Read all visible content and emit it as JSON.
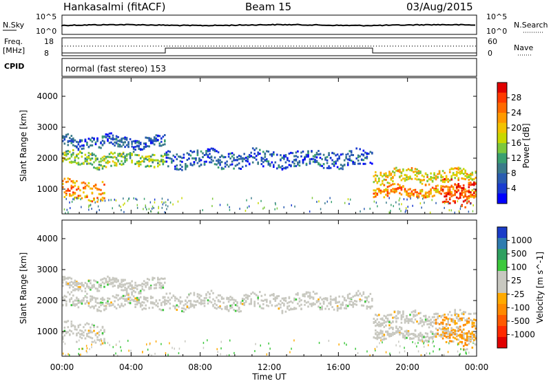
{
  "header": {
    "station": "Hankasalmi (fitACF)",
    "beam": "Beam 15",
    "date": "03/Aug/2015"
  },
  "noise_panel": {
    "left_label": "N.Sky",
    "right_label": "N.Search",
    "left_ticks": [
      "10^5",
      "10^0"
    ],
    "right_ticks": [
      "10^5",
      "10^0"
    ]
  },
  "freq_panel": {
    "left_label_1": "Freq.",
    "left_label_2": "[MHz]",
    "left_ticks": [
      "18",
      "8"
    ],
    "right_label": "Nave",
    "right_ticks": [
      "60",
      "0"
    ]
  },
  "cpid_panel": {
    "label": "CPID",
    "text": "normal (fast stereo) 153"
  },
  "power_colorbar": {
    "label": "Power [dB]",
    "ticks": [
      "28",
      "24",
      "20",
      "16",
      "12",
      "8",
      "4"
    ],
    "colors": [
      "#e00000",
      "#ff3a00",
      "#ff6a00",
      "#ff9a00",
      "#f2c300",
      "#c8d800",
      "#7cc83c",
      "#3aa070",
      "#3a7a8a",
      "#2a5cb0",
      "#1a3cd0",
      "#0000ff"
    ]
  },
  "velocity_colorbar": {
    "label": "Velocity [m s^-1]",
    "ticks": [
      "1000",
      "500",
      "100",
      "25",
      "-25",
      "-100",
      "-500",
      "-1000"
    ],
    "colors": [
      "#1a3cc8",
      "#2e7cb0",
      "#2ea060",
      "#3cc83c",
      "#c8c8c0",
      "#c8c8c0",
      "#ffaa00",
      "#ff8a00",
      "#ff5a00",
      "#ff2a00",
      "#e00000"
    ]
  },
  "chart_data": [
    {
      "type": "heatmap",
      "title": "Power",
      "xlabel": "Time UT",
      "ylabel": "Slant Range [km]",
      "x_ticks": [
        "00:00",
        "04:00",
        "08:00",
        "12:00",
        "16:00",
        "20:00",
        "00:00"
      ],
      "y_ticks": [
        "1000",
        "2000",
        "3000",
        "4000"
      ],
      "xlim_hours": [
        0,
        24
      ],
      "ylim_km": [
        200,
        4600
      ],
      "echo_bands": [
        {
          "t0": 0.0,
          "t1": 6.0,
          "center_km": 2000,
          "width_km": 220,
          "power_db": 14
        },
        {
          "t0": 0.0,
          "t1": 2.5,
          "center_km": 1000,
          "width_km": 320,
          "power_db": 22
        },
        {
          "t0": 0.0,
          "t1": 6.0,
          "center_km": 2550,
          "width_km": 180,
          "power_db": 6
        },
        {
          "t0": 6.0,
          "t1": 18.0,
          "center_km": 2000,
          "width_km": 260,
          "power_db": 6
        },
        {
          "t0": 18.0,
          "t1": 24.0,
          "center_km": 1450,
          "width_km": 200,
          "power_db": 18
        },
        {
          "t0": 18.0,
          "t1": 24.0,
          "center_km": 950,
          "width_km": 150,
          "power_db": 22
        },
        {
          "t0": 22.0,
          "t1": 24.0,
          "center_km": 950,
          "width_km": 400,
          "power_db": 28
        }
      ]
    },
    {
      "type": "heatmap",
      "title": "Velocity",
      "xlabel": "Time UT",
      "ylabel": "Slant Range [km]",
      "x_ticks": [
        "00:00",
        "04:00",
        "08:00",
        "12:00",
        "16:00",
        "20:00",
        "00:00"
      ],
      "y_ticks": [
        "1000",
        "2000",
        "3000",
        "4000"
      ],
      "xlim_hours": [
        0,
        24
      ],
      "ylim_km": [
        200,
        4600
      ],
      "note_bands": "same echo regions as power panel; mostly ground scatter |v|<25 m/s, late-evening -100 to -500 m/s"
    }
  ]
}
